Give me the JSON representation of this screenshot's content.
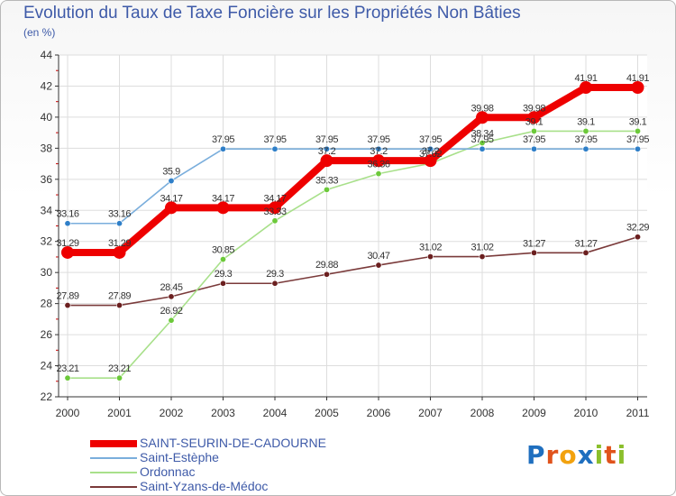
{
  "header": {
    "title": "Evolution du Taux de Taxe Foncière sur les Propriétés Non Bâties",
    "unit": "(en %)"
  },
  "logo": {
    "text": "Proxiti",
    "letters": [
      {
        "ch": "P",
        "color": "#1f6fbf"
      },
      {
        "ch": "r",
        "color": "#e0531c"
      },
      {
        "ch": "o",
        "color": "#f2a20f"
      },
      {
        "ch": "x",
        "color": "#1f6fbf"
      },
      {
        "ch": "i",
        "color": "#8bbf2c"
      },
      {
        "ch": "t",
        "color": "#e0531c"
      },
      {
        "ch": "i",
        "color": "#8bbf2c"
      }
    ]
  },
  "chart_data": {
    "type": "line",
    "title": "Evolution du Taux de Taxe Foncière sur les Propriétés Non Bâties",
    "ylabel": "(en %)",
    "xlabel": "",
    "x": [
      "2000",
      "2001",
      "2002",
      "2003",
      "2004",
      "2005",
      "2006",
      "2007",
      "2008",
      "2009",
      "2010",
      "2011"
    ],
    "ylim": [
      22,
      44
    ],
    "yticks": [
      22,
      24,
      26,
      28,
      30,
      32,
      34,
      36,
      38,
      40,
      42,
      44
    ],
    "grid": true,
    "legend_position": "bottom-left",
    "series": [
      {
        "name": "SAINT-SEURIN-DE-CADOURNE",
        "color": "#ee0000",
        "style": "thick",
        "values": [
          31.29,
          31.29,
          34.17,
          34.17,
          34.17,
          37.2,
          37.2,
          37.2,
          39.98,
          39.98,
          41.91,
          41.91
        ],
        "labels": [
          "31.29",
          "31.29",
          "34.17",
          "34.17",
          "34.17",
          "37.2",
          "37.2",
          "37.2",
          "39.98",
          "39.98",
          "41.91",
          "41.91"
        ]
      },
      {
        "name": "Saint-Estèphe",
        "color": "#7aaedc",
        "marker_color": "#2f7fc8",
        "style": "thin",
        "values": [
          33.16,
          33.16,
          35.9,
          37.95,
          37.95,
          37.95,
          37.95,
          37.95,
          37.95,
          37.95,
          37.95,
          37.95
        ],
        "labels": [
          "33.16",
          "33.16",
          "35.9",
          "37.95",
          "37.95",
          "37.95",
          "37.95",
          "37.95",
          "37.95",
          "37.95",
          "37.95",
          "37.95"
        ]
      },
      {
        "name": "Ordonnac",
        "color": "#a8e08a",
        "marker_color": "#6cc93a",
        "style": "thin",
        "values": [
          23.21,
          23.21,
          26.92,
          30.85,
          33.33,
          35.33,
          36.36,
          37.02,
          38.34,
          39.1,
          39.1,
          39.1
        ],
        "labels": [
          "23.21",
          "23.21",
          "26.92",
          "30.85",
          "33.33",
          "35.33",
          "36.36",
          "37.02",
          "38.34",
          "39.1",
          "39.1",
          "39.1"
        ]
      },
      {
        "name": "Saint-Yzans-de-Médoc",
        "color": "#7a3a3a",
        "marker_color": "#6b1f1f",
        "style": "thin",
        "values": [
          27.89,
          27.89,
          28.45,
          29.3,
          29.3,
          29.88,
          30.47,
          31.02,
          31.02,
          31.27,
          31.27,
          32.29
        ],
        "labels": [
          "27.89",
          "27.89",
          "28.45",
          "29.3",
          "29.3",
          "29.88",
          "30.47",
          "31.02",
          "31.02",
          "31.27",
          "31.27",
          "32.29"
        ]
      }
    ]
  }
}
